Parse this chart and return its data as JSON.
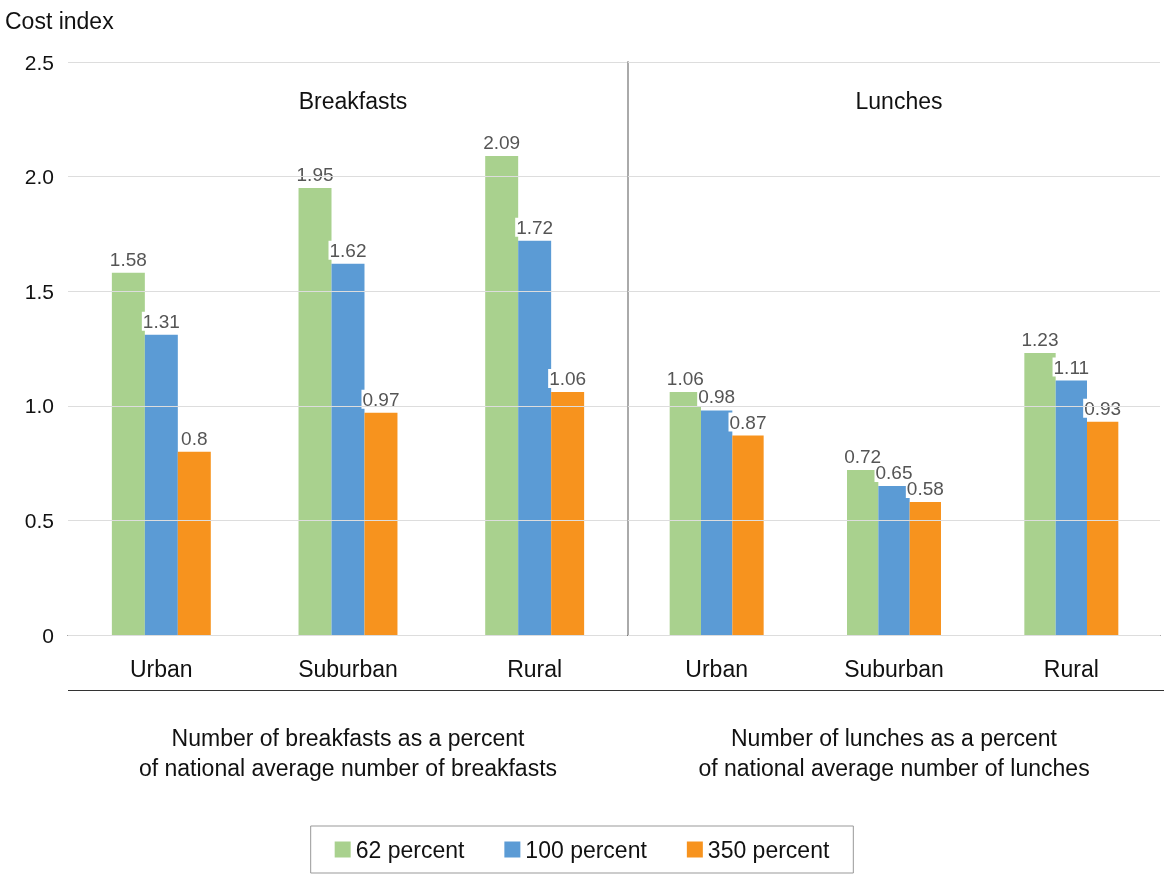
{
  "chart_data": [
    {
      "type": "bar",
      "title": "Breakfasts",
      "ylabel": "Cost index",
      "xlabel": "Number of breakfasts as a percent\nof national average number of breakfasts",
      "categories": [
        "Urban",
        "Suburban",
        "Rural"
      ],
      "series": [
        {
          "name": "62 percent",
          "color": "#a9d18e",
          "values": [
            1.58,
            1.95,
            2.09
          ]
        },
        {
          "name": "100 percent",
          "color": "#5b9bd5",
          "values": [
            1.31,
            1.62,
            1.72
          ]
        },
        {
          "name": "350 percent",
          "color": "#f7931e",
          "values": [
            0.8,
            0.97,
            1.06
          ]
        }
      ],
      "ylim": [
        0,
        2.5
      ],
      "yticks": [
        0,
        {
          "value": 0.5,
          "label": "0.5"
        },
        {
          "value": 1,
          "label": "1.0"
        },
        {
          "value": 1.5,
          "label": "1.5"
        },
        {
          "value": 2,
          "label": "2.0"
        },
        2.5
      ],
      "grid": "y",
      "data_labels": true,
      "legend": "bottom"
    },
    {
      "type": "bar",
      "title": "Lunches",
      "xlabel": "Number of lunches as a percent\nof national average number of lunches",
      "categories": [
        "Urban",
        "Suburban",
        "Rural"
      ],
      "series": [
        {
          "color": "#a9d18e",
          "values": [
            1.06,
            0.72,
            1.23
          ]
        },
        {
          "color": "#5b9bd5",
          "values": [
            0.98,
            0.65,
            1.11
          ]
        },
        {
          "color": "#f7931e",
          "values": [
            0.87,
            0.58,
            0.93
          ]
        }
      ],
      "ylim": [
        0,
        2.5
      ],
      "yticks": [
        0,
        0.5,
        1,
        1.5,
        2,
        2.5
      ],
      "grid": "y",
      "data_labels": true,
      "tick_labels": "x"
    }
  ]
}
